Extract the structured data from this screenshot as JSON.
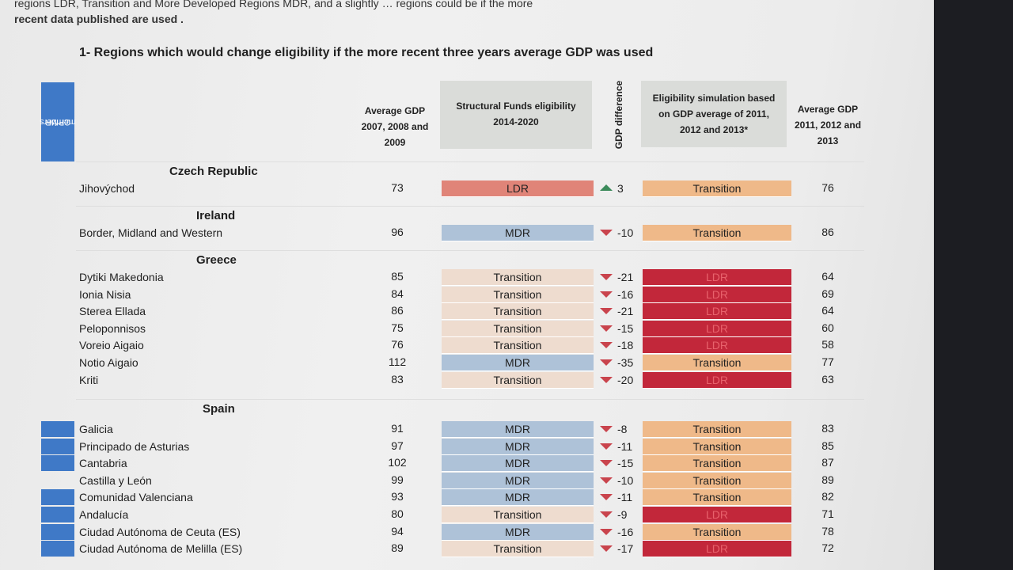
{
  "intro_text": {
    "line1": "regions LDR, Transition and More Developed Regions MDR, and a slightly … regions could be if the more",
    "line2": "recent data published are used ."
  },
  "heading": "1- Regions which would change eligibility if the more recent three years average GDP was used",
  "headers": {
    "cpmr": [
      "CPMR",
      "members"
    ],
    "avg_gdp_2007": [
      "Average GDP",
      "2007, 2008 and",
      "2009"
    ],
    "sf_eligibility": [
      "Structural Funds eligibility",
      "2014-2020"
    ],
    "gdp_difference": "GDP difference",
    "simulation": [
      "Eligibility simulation based",
      "on GDP average of 2011,",
      "2012 and 2013*"
    ],
    "avg_gdp_2011": [
      "Average GDP",
      "2011, 2012 and",
      "2013"
    ]
  },
  "colors": {
    "LDR_sf": "#e08478",
    "MDR": "#aec2d8",
    "Transition_sf": "#eedccf",
    "Transition_sim": "#efb989",
    "LDR_sim": "#c2273a",
    "cpmr_marker": "#3f79c7"
  },
  "countries": [
    {
      "name": "Czech Republic",
      "regions": [
        {
          "name": "Jihovýchod",
          "gdp_2007": "73",
          "sf": "LDR",
          "direction": "up",
          "diff": "3",
          "sim": "Transition",
          "gdp_2011": "76",
          "cpmr": false
        }
      ]
    },
    {
      "name": "Ireland",
      "regions": [
        {
          "name": "Border, Midland and Western",
          "gdp_2007": "96",
          "sf": "MDR",
          "direction": "down",
          "diff": "-10",
          "sim": "Transition",
          "gdp_2011": "86",
          "cpmr": false
        }
      ]
    },
    {
      "name": "Greece",
      "regions": [
        {
          "name": "Dytiki Makedonia",
          "gdp_2007": "85",
          "sf": "Transition",
          "direction": "down",
          "diff": "-21",
          "sim": "LDR",
          "gdp_2011": "64",
          "cpmr": false
        },
        {
          "name": "Ionia Nisia",
          "gdp_2007": "84",
          "sf": "Transition",
          "direction": "down",
          "diff": "-16",
          "sim": "LDR",
          "gdp_2011": "69",
          "cpmr": false
        },
        {
          "name": "Sterea Ellada",
          "gdp_2007": "86",
          "sf": "Transition",
          "direction": "down",
          "diff": "-21",
          "sim": "LDR",
          "gdp_2011": "64",
          "cpmr": false
        },
        {
          "name": "Peloponnisos",
          "gdp_2007": "75",
          "sf": "Transition",
          "direction": "down",
          "diff": "-15",
          "sim": "LDR",
          "gdp_2011": "60",
          "cpmr": false
        },
        {
          "name": "Voreio Aigaio",
          "gdp_2007": "76",
          "sf": "Transition",
          "direction": "down",
          "diff": "-18",
          "sim": "LDR",
          "gdp_2011": "58",
          "cpmr": false
        },
        {
          "name": "Notio Aigaio",
          "gdp_2007": "112",
          "sf": "MDR",
          "direction": "down",
          "diff": "-35",
          "sim": "Transition",
          "gdp_2011": "77",
          "cpmr": false
        },
        {
          "name": "Kriti",
          "gdp_2007": "83",
          "sf": "Transition",
          "direction": "down",
          "diff": "-20",
          "sim": "LDR",
          "gdp_2011": "63",
          "cpmr": false
        }
      ]
    },
    {
      "name": "Spain",
      "regions": [
        {
          "name": "Galicia",
          "gdp_2007": "91",
          "sf": "MDR",
          "direction": "down",
          "diff": "-8",
          "sim": "Transition",
          "gdp_2011": "83",
          "cpmr": true
        },
        {
          "name": "Principado de Asturias",
          "gdp_2007": "97",
          "sf": "MDR",
          "direction": "down",
          "diff": "-11",
          "sim": "Transition",
          "gdp_2011": "85",
          "cpmr": true
        },
        {
          "name": "Cantabria",
          "gdp_2007": "102",
          "sf": "MDR",
          "direction": "down",
          "diff": "-15",
          "sim": "Transition",
          "gdp_2011": "87",
          "cpmr": true
        },
        {
          "name": "Castilla y León",
          "gdp_2007": "99",
          "sf": "MDR",
          "direction": "down",
          "diff": "-10",
          "sim": "Transition",
          "gdp_2011": "89",
          "cpmr": false
        },
        {
          "name": "Comunidad Valenciana",
          "gdp_2007": "93",
          "sf": "MDR",
          "direction": "down",
          "diff": "-11",
          "sim": "Transition",
          "gdp_2011": "82",
          "cpmr": true
        },
        {
          "name": "Andalucía",
          "gdp_2007": "80",
          "sf": "Transition",
          "direction": "down",
          "diff": "-9",
          "sim": "LDR",
          "gdp_2011": "71",
          "cpmr": true
        },
        {
          "name": "Ciudad Autónoma de Ceuta (ES)",
          "gdp_2007": "94",
          "sf": "MDR",
          "direction": "down",
          "diff": "-16",
          "sim": "Transition",
          "gdp_2011": "78",
          "cpmr": true
        },
        {
          "name": "Ciudad Autónoma de Melilla (ES)",
          "gdp_2007": "89",
          "sf": "Transition",
          "direction": "down",
          "diff": "-17",
          "sim": "LDR",
          "gdp_2011": "72",
          "cpmr": true
        }
      ]
    }
  ]
}
